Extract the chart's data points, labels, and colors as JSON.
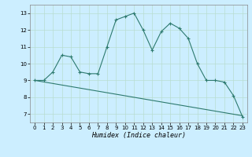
{
  "line1_x": [
    0,
    1,
    2,
    3,
    4,
    5,
    6,
    7,
    8,
    9,
    10,
    11,
    12,
    13,
    14,
    15,
    16,
    17,
    18,
    19,
    20,
    21,
    22,
    23
  ],
  "line1_y": [
    9.0,
    9.0,
    9.5,
    10.5,
    10.4,
    9.5,
    9.4,
    9.4,
    11.0,
    12.6,
    12.8,
    13.0,
    12.0,
    10.8,
    11.9,
    12.4,
    12.1,
    11.5,
    10.0,
    9.0,
    9.0,
    8.9,
    8.1,
    6.85
  ],
  "line2_x": [
    0,
    23
  ],
  "line2_y": [
    9.0,
    6.9
  ],
  "line_color": "#2d7a6e",
  "bg_color": "#cceeff",
  "grid_color": "#b8ddd0",
  "xlabel": "Humidex (Indice chaleur)",
  "ylim": [
    6.5,
    13.5
  ],
  "xlim": [
    -0.5,
    23.5
  ],
  "yticks": [
    7,
    8,
    9,
    10,
    11,
    12,
    13
  ],
  "xticks": [
    0,
    1,
    2,
    3,
    4,
    5,
    6,
    7,
    8,
    9,
    10,
    11,
    12,
    13,
    14,
    15,
    16,
    17,
    18,
    19,
    20,
    21,
    22,
    23
  ]
}
